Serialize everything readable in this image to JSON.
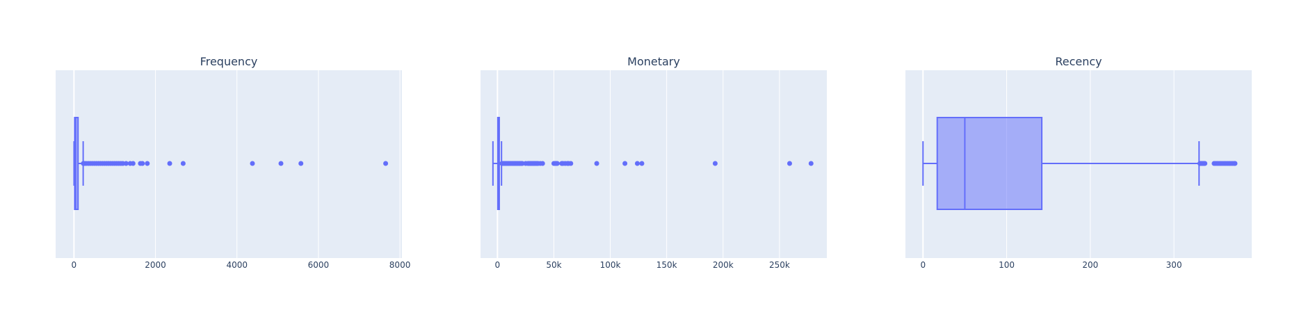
{
  "colors": {
    "plot_bg": "#e5ecf6",
    "grid": "#ffffff",
    "box_line": "#636efa",
    "box_fill": "rgba(99,110,250,0.5)",
    "text": "#2a3f5f"
  },
  "chart_data": [
    {
      "type": "box",
      "orientation": "horizontal",
      "title": "Frequency",
      "xlim": [
        -450,
        8050
      ],
      "xticks": [
        0,
        2000,
        4000,
        6000,
        8000
      ],
      "xtick_labels": [
        "0",
        "2000",
        "4000",
        "6000",
        "8000"
      ],
      "stats": {
        "lowerfence": 1,
        "q1": 17,
        "median": 41,
        "q3": 100,
        "upperfence": 226
      },
      "outliers": [
        230,
        260,
        300,
        350,
        400,
        450,
        500,
        550,
        600,
        650,
        700,
        750,
        800,
        850,
        900,
        950,
        1000,
        1050,
        1100,
        1150,
        1200,
        1280,
        1380,
        1450,
        1630,
        1680,
        1800,
        2350,
        2680,
        4380,
        5080,
        5570,
        7650
      ]
    },
    {
      "type": "box",
      "orientation": "horizontal",
      "title": "Monetary",
      "xlim": [
        -15000,
        292000
      ],
      "xticks": [
        0,
        50000,
        100000,
        150000,
        200000,
        250000
      ],
      "xtick_labels": [
        "0",
        "50k",
        "100k",
        "150k",
        "200k",
        "250k"
      ],
      "stats": {
        "lowerfence": -4000,
        "q1": 300,
        "median": 650,
        "q3": 1600,
        "upperfence": 3600
      },
      "outliers": [
        4000,
        5000,
        6000,
        7000,
        8000,
        9000,
        10000,
        11000,
        12000,
        13000,
        14000,
        15000,
        16000,
        17000,
        18000,
        19000,
        20000,
        21000,
        22000,
        25000,
        27000,
        28000,
        29000,
        30000,
        31000,
        32000,
        33000,
        34000,
        35000,
        36000,
        38000,
        40000,
        50000,
        51000,
        52000,
        53000,
        57000,
        58000,
        60000,
        62000,
        63000,
        65000,
        88000,
        113000,
        124000,
        128000,
        193000,
        259000,
        278000
      ]
    },
    {
      "type": "box",
      "orientation": "horizontal",
      "title": "Recency",
      "xlim": [
        -21,
        393
      ],
      "xticks": [
        0,
        100,
        200,
        300
      ],
      "xtick_labels": [
        "0",
        "100",
        "200",
        "300"
      ],
      "stats": {
        "lowerfence": 0,
        "q1": 17,
        "median": 50,
        "q3": 142,
        "upperfence": 330
      },
      "outliers": [
        331,
        332,
        333,
        334,
        335,
        336,
        337,
        348,
        350,
        352,
        354,
        356,
        358,
        360,
        362,
        364,
        366,
        368,
        370,
        372,
        373
      ]
    }
  ]
}
